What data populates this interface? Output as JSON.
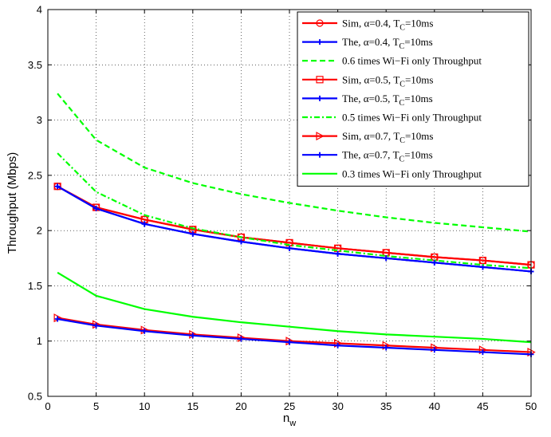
{
  "chart_data": {
    "type": "line",
    "xlabel": "n",
    "xlabel_sub": "w",
    "ylabel": "Throughput (Mbps)",
    "xlim": [
      0,
      50
    ],
    "ylim": [
      0.5,
      4
    ],
    "xticks": [
      0,
      5,
      10,
      15,
      20,
      25,
      30,
      35,
      40,
      45,
      50
    ],
    "yticks": [
      0.5,
      1,
      1.5,
      2,
      2.5,
      3,
      3.5,
      4
    ],
    "ytick_labels": [
      "0.5",
      "1",
      "1.5",
      "2",
      "2.5",
      "3",
      "3.5",
      "4"
    ],
    "grid": true,
    "legend_position": "top-right",
    "x": [
      1,
      5,
      10,
      15,
      20,
      25,
      30,
      35,
      40,
      45,
      50
    ],
    "series": [
      {
        "name": "Sim, α=0.4, T_C=10ms",
        "label_main": "Sim, α=0.4, T",
        "label_sub": "C",
        "label_tail": "=10ms",
        "color": "#ff0000",
        "dash": "solid",
        "marker": "circle",
        "values": [
          2.4,
          2.21,
          2.1,
          2.01,
          1.94,
          1.89,
          1.84,
          1.8,
          1.76,
          1.73,
          1.69
        ]
      },
      {
        "name": "The, α=0.4, T_C=10ms",
        "label_main": "The, α=0.4, T",
        "label_sub": "C",
        "label_tail": "=10ms",
        "color": "#0000ff",
        "dash": "solid",
        "marker": "plus",
        "values": [
          2.4,
          2.2,
          2.06,
          1.97,
          1.9,
          1.84,
          1.79,
          1.75,
          1.71,
          1.67,
          1.63
        ]
      },
      {
        "name": "0.6 times Wi-Fi only Throughput",
        "label_main": "0.6 times Wi−Fi only Throughput",
        "label_sub": "",
        "label_tail": "",
        "color": "#00ff00",
        "dash": "dashed",
        "marker": "none",
        "values": [
          3.24,
          2.82,
          2.57,
          2.43,
          2.33,
          2.25,
          2.18,
          2.12,
          2.07,
          2.03,
          1.99
        ]
      },
      {
        "name": "Sim, α=0.5, T_C=10ms",
        "label_main": "Sim, α=0.5, T",
        "label_sub": "C",
        "label_tail": "=10ms",
        "color": "#ff0000",
        "dash": "solid",
        "marker": "square",
        "values": [
          2.4,
          2.21,
          2.1,
          2.01,
          1.94,
          1.89,
          1.84,
          1.8,
          1.76,
          1.73,
          1.69
        ]
      },
      {
        "name": "The, α=0.5, T_C=10ms",
        "label_main": "The, α=0.5, T",
        "label_sub": "C",
        "label_tail": "=10ms",
        "color": "#0000ff",
        "dash": "solid",
        "marker": "plus",
        "values": [
          2.4,
          2.2,
          2.06,
          1.97,
          1.9,
          1.84,
          1.79,
          1.75,
          1.71,
          1.67,
          1.63
        ]
      },
      {
        "name": "0.5 times Wi-Fi only Throughput",
        "label_main": "0.5 times Wi−Fi only Throughput",
        "label_sub": "",
        "label_tail": "",
        "color": "#00ff00",
        "dash": "dashdot",
        "marker": "none",
        "values": [
          2.7,
          2.35,
          2.14,
          2.02,
          1.94,
          1.87,
          1.82,
          1.77,
          1.73,
          1.69,
          1.66
        ]
      },
      {
        "name": "Sim, α=0.7, T_C=10ms",
        "label_main": "Sim, α=0.7, T",
        "label_sub": "C",
        "label_tail": "=10ms",
        "color": "#ff0000",
        "dash": "solid",
        "marker": "triangle-right",
        "values": [
          1.21,
          1.15,
          1.1,
          1.06,
          1.03,
          1.0,
          0.98,
          0.96,
          0.94,
          0.92,
          0.9
        ]
      },
      {
        "name": "The, α=0.7, T_C=10ms",
        "label_main": "The, α=0.7, T",
        "label_sub": "C",
        "label_tail": "=10ms",
        "color": "#0000ff",
        "dash": "solid",
        "marker": "plus",
        "values": [
          1.2,
          1.14,
          1.09,
          1.05,
          1.02,
          0.99,
          0.96,
          0.94,
          0.92,
          0.9,
          0.88
        ]
      },
      {
        "name": "0.3 times Wi-Fi only Throughput",
        "label_main": "0.3 times Wi−Fi only Throughput",
        "label_sub": "",
        "label_tail": "",
        "color": "#00ff00",
        "dash": "solid",
        "marker": "none",
        "values": [
          1.62,
          1.41,
          1.29,
          1.22,
          1.17,
          1.13,
          1.09,
          1.06,
          1.04,
          1.02,
          0.99
        ]
      }
    ]
  }
}
